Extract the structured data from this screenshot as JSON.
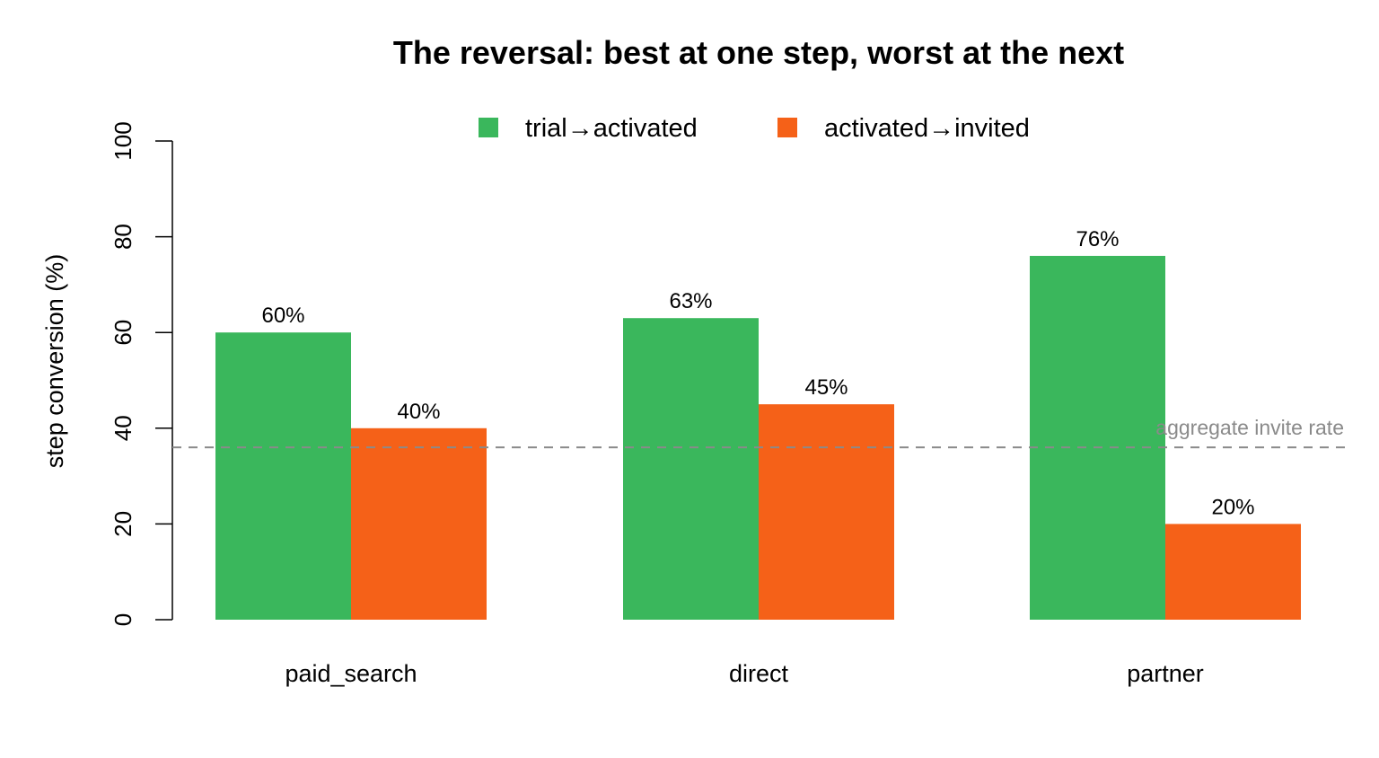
{
  "chart_data": {
    "type": "bar",
    "title": "The reversal: best at one step, worst at the next",
    "xlabel": "",
    "ylabel": "step conversion (%)",
    "ylim": [
      0,
      100
    ],
    "yticks": [
      0,
      20,
      40,
      60,
      80,
      100
    ],
    "categories": [
      "paid_search",
      "direct",
      "partner"
    ],
    "series": [
      {
        "name": "trial→activated",
        "values": [
          60,
          63,
          76
        ],
        "labels": [
          "60%",
          "63%",
          "76%"
        ],
        "color": "#3ab75c"
      },
      {
        "name": "activated→invited",
        "values": [
          40,
          45,
          20
        ],
        "labels": [
          "40%",
          "45%",
          "20%"
        ],
        "color": "#f56118"
      }
    ],
    "reference_line": {
      "label": "aggregate invite rate",
      "value": 36,
      "color": "#8a8a8a",
      "style": "dashed"
    },
    "legend_position": "top",
    "grid": false
  }
}
